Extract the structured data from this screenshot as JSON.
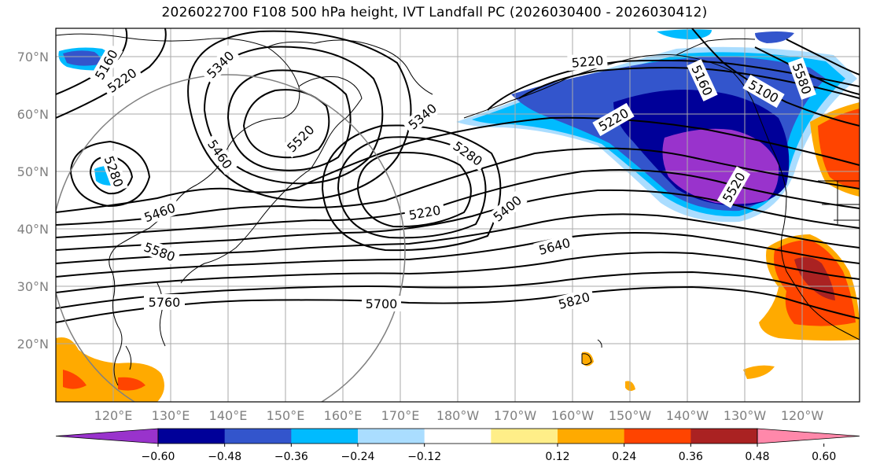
{
  "title": "2026022700 F108 500 hPa height, IVT Landfall PC (2026030400 - 2026030412)",
  "map": {
    "lat_labels": [
      "70°N",
      "60°N",
      "50°N",
      "40°N",
      "30°N",
      "20°N"
    ],
    "lon_labels": [
      "120°E",
      "130°E",
      "140°E",
      "150°E",
      "160°E",
      "170°E",
      "180°W",
      "170°W",
      "160°W",
      "150°W",
      "140°W",
      "130°W",
      "120°W"
    ],
    "contour_labels": [
      "5160",
      "5220",
      "5340",
      "5280",
      "5220",
      "5460",
      "5520",
      "5340",
      "5280",
      "5220",
      "5400",
      "5640",
      "5820",
      "5700",
      "5760",
      "5460",
      "5580",
      "5160",
      "5100",
      "5580",
      "5520",
      "5220"
    ],
    "colors": {
      "c1": "#9933cc",
      "c2": "#000099",
      "c3": "#3355cc",
      "c4": "#00bbff",
      "c5": "#aaddff",
      "w6": "#ffee88",
      "w7": "#ffaa00",
      "w8": "#ff4400",
      "w9": "#aa2222",
      "w10": "#ff88aa"
    }
  },
  "colorbar": {
    "ticks": [
      "−0.60",
      "−0.48",
      "−0.36",
      "−0.24",
      "−0.12",
      "0.12",
      "0.24",
      "0.36",
      "0.48",
      "0.60"
    ],
    "colors": [
      "#9933cc",
      "#000099",
      "#3355cc",
      "#00bbff",
      "#aaddff",
      "#ffffff",
      "#ffee88",
      "#ffaa00",
      "#ff4400",
      "#aa2222",
      "#ff88aa"
    ]
  }
}
